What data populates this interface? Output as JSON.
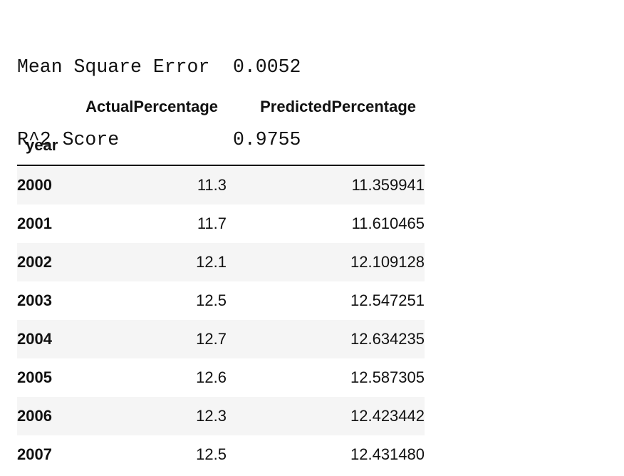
{
  "metrics": [
    {
      "label": "Mean Square Error",
      "value": "0.0052"
    },
    {
      "label": "R^2 Score",
      "value": "0.9755"
    }
  ],
  "table": {
    "columns": [
      "ActualPercentage",
      "PredictedPercentage"
    ],
    "index_name": "year",
    "rows": [
      {
        "year": "2000",
        "actual": "11.3",
        "predicted": "11.359941"
      },
      {
        "year": "2001",
        "actual": "11.7",
        "predicted": "11.610465"
      },
      {
        "year": "2002",
        "actual": "12.1",
        "predicted": "12.109128"
      },
      {
        "year": "2003",
        "actual": "12.5",
        "predicted": "12.547251"
      },
      {
        "year": "2004",
        "actual": "12.7",
        "predicted": "12.634235"
      },
      {
        "year": "2005",
        "actual": "12.6",
        "predicted": "12.587305"
      },
      {
        "year": "2006",
        "actual": "12.3",
        "predicted": "12.423442"
      },
      {
        "year": "2007",
        "actual": "12.5",
        "predicted": "12.431480"
      }
    ]
  },
  "colors": {
    "text": "#111111",
    "row_stripe": "#f5f5f5",
    "background": "#ffffff"
  }
}
